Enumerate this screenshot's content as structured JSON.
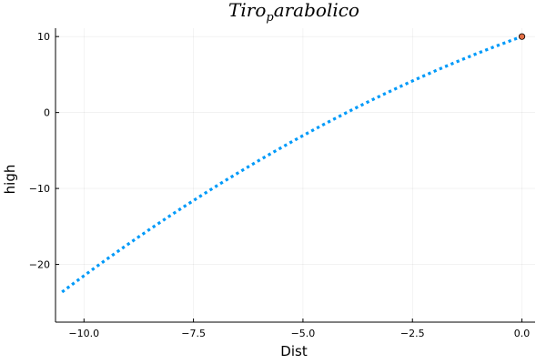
{
  "chart_data": {
    "type": "scatter",
    "title": {
      "base": "Tiro",
      "sub": "p",
      "rest": "arabolico"
    },
    "xlabel": "Dist",
    "ylabel": "high",
    "xlim": [
      -10.65,
      0.3
    ],
    "ylim": [
      -27.6,
      11.1
    ],
    "x_ticks": [
      -10.0,
      -7.5,
      -5.0,
      -2.5,
      0.0
    ],
    "x_tick_labels": [
      "−10.0",
      "−7.5",
      "−5.0",
      "−2.5",
      "0.0"
    ],
    "y_ticks": [
      -20,
      -10,
      0,
      10
    ],
    "y_tick_labels": [
      "−20",
      "−10",
      "0",
      "10"
    ],
    "grid": true,
    "series": [
      {
        "color": "#009af9",
        "style": "dotted",
        "curve": {
          "form": "quadratic",
          "a": -0.1082,
          "b": 2.067,
          "c": 10.0
        },
        "x": [
          -10.5,
          -10.2,
          -9.9,
          -9.6,
          -9.3,
          -9.0,
          -8.7,
          -8.4,
          -8.1,
          -7.8,
          -7.5,
          -7.2,
          -6.9,
          -6.6,
          -6.3,
          -6.0,
          -5.7,
          -5.4,
          -5.1,
          -4.8,
          -4.5,
          -4.2,
          -3.9,
          -3.6,
          -3.3,
          -3.0,
          -2.7,
          -2.4,
          -2.1,
          -1.8,
          -1.5,
          -1.2,
          -0.9,
          -0.6,
          -0.3,
          0.0
        ],
        "y": [
          -26.64,
          -24.34,
          -21.07,
          -19.81,
          -18.58,
          -17.36,
          -16.17,
          -15.0,
          -13.84,
          -12.71,
          -11.59,
          -10.49,
          -9.42,
          -8.36,
          -7.32,
          -6.3,
          -5.3,
          -4.32,
          -3.36,
          -2.41,
          -1.49,
          -0.59,
          0.29,
          1.16,
          2.01,
          2.83,
          3.63,
          4.42,
          5.18,
          5.93,
          6.65,
          7.36,
          8.05,
          8.72,
          9.37,
          10.0
        ]
      },
      {
        "color": "#e26f46",
        "style": "marker",
        "x": [
          0.0
        ],
        "y": [
          10.0
        ]
      }
    ]
  }
}
